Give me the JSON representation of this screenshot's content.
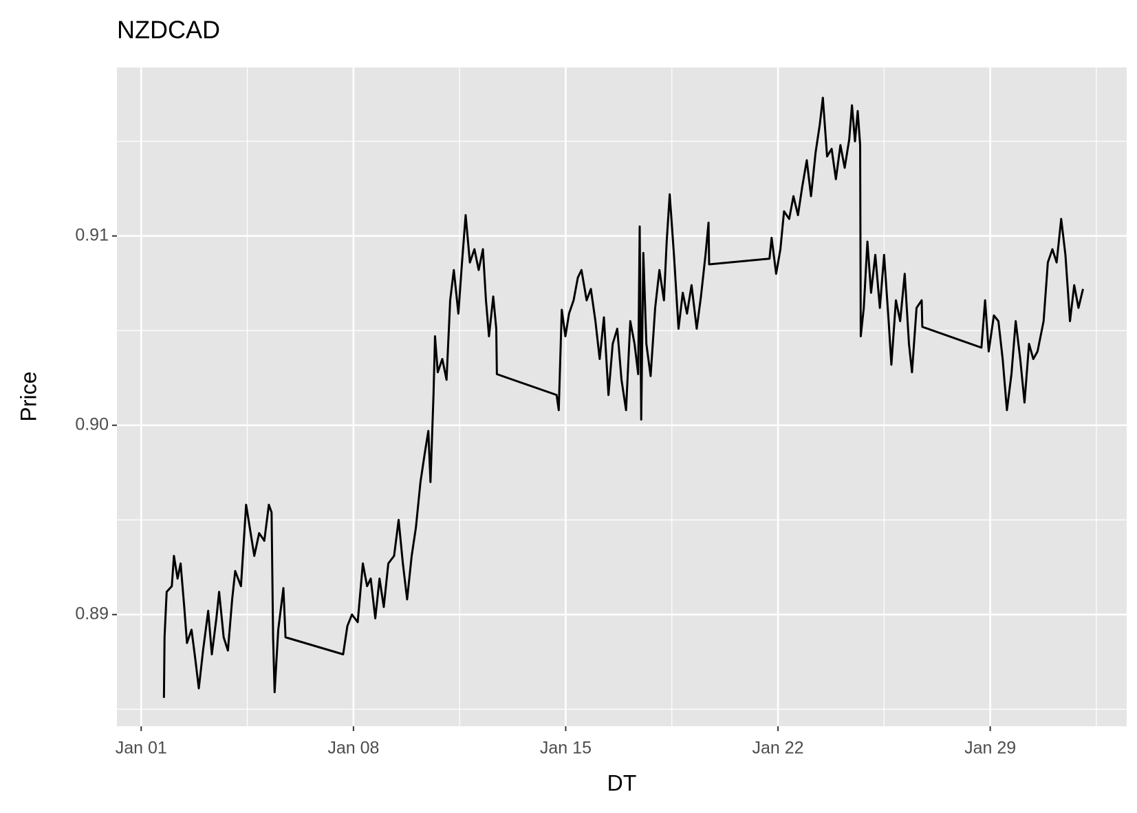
{
  "chart_data": {
    "type": "line",
    "title": "NZDCAD",
    "x_label": "DT",
    "y_label": "Price",
    "x": [
      0.75,
      0.77,
      0.84,
      1.01,
      1.08,
      1.2,
      1.3,
      1.42,
      1.51,
      1.66,
      1.78,
      1.9,
      2.04,
      2.21,
      2.33,
      2.48,
      2.57,
      2.72,
      2.86,
      3.0,
      3.1,
      3.29,
      3.46,
      3.58,
      3.73,
      3.89,
      4.06,
      4.21,
      4.3,
      4.35,
      4.4,
      4.52,
      4.69,
      4.76,
      6.66,
      6.8,
      6.95,
      7.14,
      7.31,
      7.45,
      7.57,
      7.72,
      7.86,
      8.0,
      8.15,
      8.34,
      8.49,
      8.63,
      8.77,
      8.92,
      9.06,
      9.21,
      9.35,
      9.47,
      9.54,
      9.64,
      9.69,
      9.78,
      9.93,
      10.07,
      10.19,
      10.31,
      10.46,
      10.58,
      10.7,
      10.84,
      10.99,
      11.13,
      11.27,
      11.37,
      11.47,
      11.61,
      11.71,
      11.73,
      13.7,
      13.77,
      13.87,
      13.99,
      14.11,
      14.26,
      14.4,
      14.52,
      14.69,
      14.83,
      14.98,
      15.12,
      15.26,
      15.41,
      15.55,
      15.7,
      15.84,
      15.99,
      16.13,
      16.27,
      16.39,
      16.44,
      16.49,
      16.56,
      16.66,
      16.8,
      16.95,
      17.09,
      17.24,
      17.33,
      17.43,
      17.57,
      17.72,
      17.86,
      18.0,
      18.15,
      18.32,
      18.46,
      18.61,
      18.71,
      18.73,
      20.72,
      20.79,
      20.94,
      21.08,
      21.2,
      21.37,
      21.51,
      21.66,
      21.8,
      21.95,
      22.09,
      22.24,
      22.38,
      22.48,
      22.62,
      22.77,
      22.91,
      23.06,
      23.2,
      23.35,
      23.44,
      23.54,
      23.63,
      23.71,
      23.73,
      23.83,
      23.95,
      24.07,
      24.21,
      24.36,
      24.5,
      24.65,
      24.74,
      24.89,
      25.03,
      25.18,
      25.32,
      25.42,
      25.57,
      25.74,
      25.76,
      27.71,
      27.83,
      27.95,
      28.12,
      28.27,
      28.41,
      28.55,
      28.7,
      28.84,
      28.99,
      29.13,
      29.28,
      29.42,
      29.56,
      29.76,
      29.9,
      30.05,
      30.19,
      30.34,
      30.48,
      30.63,
      30.77,
      30.91,
      31.06
    ],
    "series": [
      {
        "name": "NZDCAD",
        "color": "#000000",
        "values": [
          0.8856,
          0.8888,
          0.8912,
          0.8915,
          0.8931,
          0.8919,
          0.8927,
          0.8904,
          0.8885,
          0.8892,
          0.8877,
          0.8861,
          0.8881,
          0.8902,
          0.8879,
          0.8898,
          0.8912,
          0.8888,
          0.8881,
          0.8908,
          0.8923,
          0.8915,
          0.8958,
          0.8946,
          0.8931,
          0.8943,
          0.8939,
          0.8958,
          0.8954,
          0.8888,
          0.8859,
          0.8892,
          0.8914,
          0.8888,
          0.8879,
          0.8894,
          0.89,
          0.8896,
          0.8927,
          0.8915,
          0.8919,
          0.8898,
          0.8919,
          0.8904,
          0.8927,
          0.8931,
          0.895,
          0.8927,
          0.8908,
          0.8931,
          0.8946,
          0.897,
          0.8985,
          0.8997,
          0.897,
          0.9016,
          0.9047,
          0.9028,
          0.9035,
          0.9024,
          0.9066,
          0.9082,
          0.9059,
          0.9086,
          0.9111,
          0.9086,
          0.9093,
          0.9082,
          0.9093,
          0.9066,
          0.9047,
          0.9068,
          0.9051,
          0.9027,
          0.9016,
          0.9008,
          0.9061,
          0.9047,
          0.9059,
          0.9066,
          0.9078,
          0.9082,
          0.9066,
          0.9072,
          0.9055,
          0.9035,
          0.9057,
          0.9016,
          0.9043,
          0.9051,
          0.9024,
          0.9008,
          0.9055,
          0.9043,
          0.9027,
          0.9105,
          0.9003,
          0.9091,
          0.9043,
          0.9026,
          0.9062,
          0.9082,
          0.9066,
          0.9097,
          0.9122,
          0.909,
          0.9051,
          0.907,
          0.9059,
          0.9074,
          0.9051,
          0.9068,
          0.909,
          0.9107,
          0.9085,
          0.9088,
          0.9099,
          0.908,
          0.9093,
          0.9113,
          0.9109,
          0.9121,
          0.9111,
          0.9126,
          0.914,
          0.9121,
          0.9144,
          0.9159,
          0.9173,
          0.9142,
          0.9146,
          0.913,
          0.9148,
          0.9136,
          0.9151,
          0.9169,
          0.915,
          0.9166,
          0.9148,
          0.9047,
          0.9062,
          0.9097,
          0.907,
          0.909,
          0.9062,
          0.909,
          0.9055,
          0.9032,
          0.9066,
          0.9055,
          0.908,
          0.9043,
          0.9028,
          0.9062,
          0.9066,
          0.9052,
          0.9041,
          0.9066,
          0.9039,
          0.9058,
          0.9055,
          0.9035,
          0.9008,
          0.9027,
          0.9055,
          0.9035,
          0.9012,
          0.9043,
          0.9035,
          0.9039,
          0.9055,
          0.9086,
          0.9093,
          0.9086,
          0.9109,
          0.909,
          0.9055,
          0.9074,
          0.9062,
          0.9072
        ]
      }
    ],
    "xlim": [
      -0.8,
      32.5
    ],
    "xticks": [
      {
        "value": 0,
        "label": "Jan 01"
      },
      {
        "value": 7,
        "label": "Jan 08"
      },
      {
        "value": 14,
        "label": "Jan 15"
      },
      {
        "value": 21,
        "label": "Jan 22"
      },
      {
        "value": 28,
        "label": "Jan 29"
      }
    ],
    "ylim": [
      0.8841,
      0.9189
    ],
    "yticks": [
      0.89,
      {
        "value": 0.9,
        "label": "0.90"
      },
      0.91
    ],
    "grid": true,
    "background": "#e5e5e5"
  }
}
